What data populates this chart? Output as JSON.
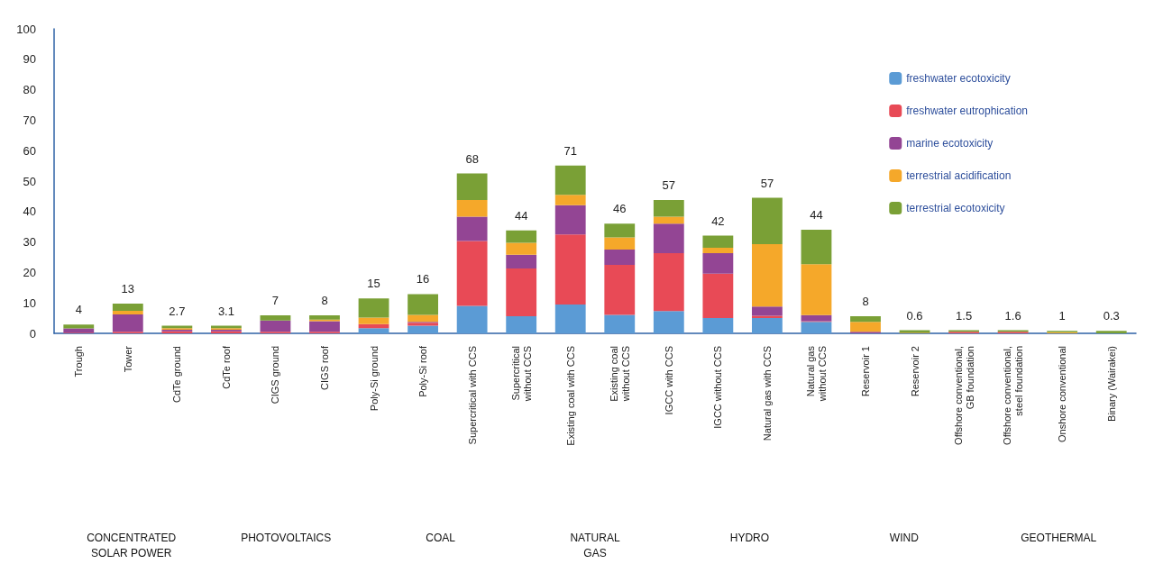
{
  "chart_data": {
    "type": "bar",
    "stacked": true,
    "categories": [
      "Trough",
      "Tower",
      "CdTe ground",
      "CdTe roof",
      "CIGS ground",
      "CIGS roof",
      "Poly-Si ground",
      "Poly-Si roof",
      "Supercritical with CCS",
      "Supercritical\nwithout CCS",
      "Existing coal with CCS",
      "Existing coal\nwithout CCS",
      "IGCC with CCS",
      "IGCC without CCS",
      "Natural gas with CCS",
      "Natural gas\nwithout CCS",
      "Reservoir 1",
      "Reservoir 2",
      "Offshore conventional,\nGB foundation",
      "Offshore conventional,\nsteel foundation",
      "Onshore conventional",
      "Binary (Wairakei)"
    ],
    "series": [
      {
        "name": "freshwater ecotoxicity",
        "color": "#5b9bd5",
        "values": [
          0,
          0,
          0,
          0,
          0,
          0,
          1.7,
          2.5,
          9.0,
          5.6,
          9.5,
          6.1,
          7.3,
          5.0,
          5.0,
          3.8,
          0,
          0,
          0,
          0,
          0,
          0
        ]
      },
      {
        "name": "freshwater eutrophication",
        "color": "#e84a56",
        "values": [
          0.2,
          0.5,
          0.7,
          0.7,
          0.5,
          0.5,
          1.3,
          1.0,
          21.3,
          15.7,
          23.0,
          16.4,
          19.0,
          14.6,
          0.8,
          0.2,
          0,
          0,
          0.5,
          0.5,
          0,
          0
        ]
      },
      {
        "name": "marine ecotoxicity",
        "color": "#934594",
        "values": [
          1.4,
          5.7,
          0.5,
          0.5,
          3.7,
          3.5,
          0,
          0.3,
          8.0,
          4.5,
          9.6,
          5.0,
          9.7,
          6.7,
          3.0,
          2.0,
          0.5,
          0,
          0,
          0,
          0,
          0
        ]
      },
      {
        "name": "terrestrial acidification",
        "color": "#f5a82a",
        "values": [
          0,
          1.2,
          0.5,
          0.5,
          0,
          0.5,
          2.2,
          2.3,
          5.5,
          3.9,
          3.4,
          4.0,
          2.3,
          1.8,
          20.5,
          16.7,
          3.3,
          0.2,
          0,
          0,
          0.4,
          0
        ]
      },
      {
        "name": "terrestrial ecotoxicity",
        "color": "#7aa036",
        "values": [
          1.3,
          2.4,
          0.8,
          0.8,
          1.7,
          1.4,
          6.3,
          6.8,
          8.7,
          4.1,
          9.6,
          4.5,
          5.5,
          4.0,
          15.2,
          11.3,
          1.8,
          0.8,
          0.5,
          0.5,
          0.4,
          0.8
        ]
      }
    ],
    "ylim": [
      0,
      100
    ],
    "yticks": [
      0,
      10,
      20,
      30,
      40,
      50,
      60,
      70,
      80,
      90,
      100
    ],
    "grid": false,
    "legend": "top right",
    "annotations": [
      "CONCENTRATED\nSOLAR POWER",
      "PHOTOVOLTAICS",
      "COAL",
      "NATURAL\nGAS",
      "HYDRO",
      "WIND",
      "GEOTHERMAL",
      {
        "text": "4",
        "x": "Trough",
        "y": 2.9
      },
      {
        "text": "13",
        "x": "Tower",
        "y": 9.8
      },
      {
        "text": "2.7",
        "x": "CdTe ground",
        "y": 2.5
      },
      {
        "text": "3.1",
        "x": "CdTe roof",
        "y": 2.5
      },
      {
        "text": "7",
        "x": "CIGS ground",
        "y": 5.9
      },
      {
        "text": "8",
        "x": "CIGS roof",
        "y": 5.9
      },
      {
        "text": "15",
        "x": "Poly-Si ground",
        "y": 11.5
      },
      {
        "text": "16",
        "x": "Poly-Si roof",
        "y": 12.9
      },
      {
        "text": "68",
        "x": "Supercritical with CCS",
        "y": 52.5
      },
      {
        "text": "44",
        "x": "Supercritical\nwithout CCS",
        "y": 33.8
      },
      {
        "text": "71",
        "x": "Existing coal with CCS",
        "y": 55.1
      },
      {
        "text": "46",
        "x": "Existing coal\nwithout CCS",
        "y": 36.0
      },
      {
        "text": "57",
        "x": "IGCC with CCS",
        "y": 43.8
      },
      {
        "text": "42",
        "x": "IGCC without CCS",
        "y": 32.1
      },
      {
        "text": "57",
        "x": "Natural gas with CCS",
        "y": 44.5
      },
      {
        "text": "44",
        "x": "Natural gas\nwithout CCS",
        "y": 34.0
      },
      {
        "text": "8",
        "x": "Reservoir 1",
        "y": 5.6
      },
      {
        "text": "0.6",
        "x": "Reservoir 2",
        "y": 1.0
      },
      {
        "text": "1.5",
        "x": "Offshore conventional,\nGB foundation",
        "y": 1.0
      },
      {
        "text": "1.6",
        "x": "Offshore conventional,\nsteel foundation",
        "y": 1.0
      },
      {
        "text": "1",
        "x": "Onshore conventional",
        "y": 0.8
      },
      {
        "text": "0.3",
        "x": "Binary (Wairakei)",
        "y": 0.8
      }
    ]
  }
}
